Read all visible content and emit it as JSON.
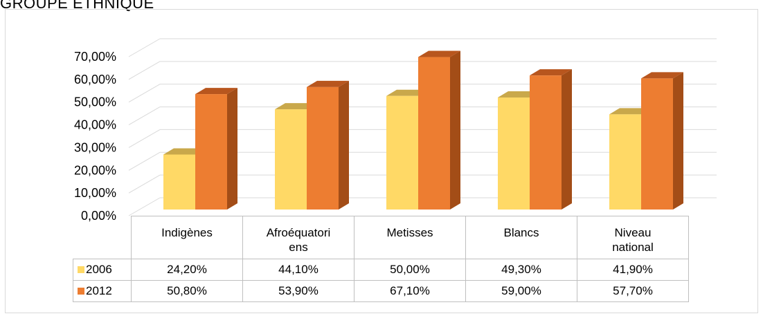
{
  "chart_title": "GROUPE ETHNIQUE",
  "chart_data": {
    "type": "bar",
    "categories": [
      "Indigènes",
      "Afroéquatoriens",
      "Metisses",
      "Blancs",
      "Niveau national"
    ],
    "category_lines": [
      [
        "Indigènes"
      ],
      [
        "Afroéquatori",
        "ens"
      ],
      [
        "Metisses"
      ],
      [
        "Blancs"
      ],
      [
        "Niveau",
        "national"
      ]
    ],
    "series": [
      {
        "name": "2006",
        "values": [
          24.2,
          44.1,
          50.0,
          49.3,
          41.9
        ],
        "labels": [
          "24,20%",
          "44,10%",
          "50,00%",
          "49,30%",
          "41,90%"
        ],
        "color": "#FFD966",
        "top_color": "#C9A84B"
      },
      {
        "name": "2012",
        "values": [
          50.8,
          53.9,
          67.1,
          59.0,
          57.7
        ],
        "labels": [
          "50,80%",
          "53,90%",
          "67,10%",
          "59,00%",
          "57,70%"
        ],
        "color": "#ED7D31",
        "top_color": "#B8561E",
        "side_color": "#A34D17"
      }
    ],
    "ylim": [
      0,
      70
    ],
    "yticks": [
      "0,00%",
      "10,00%",
      "20,00%",
      "30,00%",
      "40,00%",
      "50,00%",
      "60,00%",
      "70,00%"
    ],
    "grid": true,
    "style": "3d-column",
    "data_table": true
  }
}
